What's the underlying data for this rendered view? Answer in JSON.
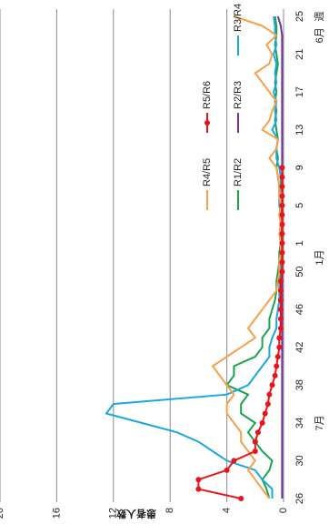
{
  "chart_data": {
    "type": "line",
    "y_label": "患者人数",
    "x_label": "週",
    "month_labels": [
      "7月",
      "1月",
      "6月"
    ],
    "categories": [
      "26",
      null,
      null,
      null,
      "30",
      null,
      null,
      null,
      "34",
      null,
      null,
      null,
      "38",
      null,
      null,
      null,
      "42",
      null,
      null,
      null,
      "46",
      null,
      null,
      null,
      "50",
      null,
      null,
      "1",
      null,
      null,
      null,
      "5",
      null,
      null,
      null,
      "9",
      null,
      null,
      null,
      "13",
      null,
      null,
      null,
      "17",
      null,
      null,
      null,
      "21",
      null,
      null,
      null,
      "25"
    ],
    "ylim": [
      0,
      20
    ],
    "yticks": [
      0,
      4,
      8,
      12,
      16,
      20
    ],
    "grid": true,
    "series": [
      {
        "name": "R1/R2",
        "color": "#1aa34a",
        "values": [
          1,
          1.2,
          1.5,
          1,
          0.8,
          1.5,
          2,
          2.5,
          2,
          3,
          3,
          2.5,
          4,
          3.5,
          3.5,
          2,
          1.5,
          1.5,
          1,
          1,
          0.8,
          0.6,
          0.5,
          0.5,
          0.4,
          0.3,
          0.3,
          0.2,
          0.2,
          0.2,
          0.2,
          0.2,
          0.3,
          0.3,
          0.4,
          0.5,
          0.4,
          0.5,
          0.4,
          0.5,
          0.6,
          0.5,
          0.6,
          0.5,
          0.6,
          0.5,
          0.4,
          0.5,
          0.6,
          0.5,
          0.5,
          0.6
        ]
      },
      {
        "name": "R2/R3",
        "color": "#7030a0",
        "values": [
          0.1,
          0.1,
          0.1,
          0.1,
          0.1,
          0.1,
          0.1,
          0.1,
          0.1,
          0.1,
          0.1,
          0.1,
          0.1,
          0.1,
          0.1,
          0.1,
          0.1,
          0.1,
          0.1,
          0.1,
          0.1,
          0.1,
          0.1,
          0.1,
          0.1,
          0.1,
          0.1,
          0.1,
          0.1,
          0.1,
          0.1,
          0.1,
          0.1,
          0.1,
          0.1,
          0.1,
          0.1,
          0.1,
          0.1,
          0.1,
          0.1,
          0.1,
          0.1,
          0.1,
          0.1,
          0.1,
          0.1,
          0.1,
          0.1,
          0.1,
          0.2,
          0.4
        ]
      },
      {
        "name": "R3/R4",
        "color": "#1aa7e0",
        "values": [
          0.8,
          0.8,
          1.5,
          2,
          4,
          5,
          6,
          7.5,
          10,
          12.5,
          12,
          4,
          2.5,
          2,
          1.5,
          1,
          1,
          0.8,
          0.5,
          0.5,
          0.4,
          0.3,
          0.3,
          0.3,
          0.2,
          0.2,
          0.2,
          0.2,
          0.2,
          0.2,
          0.2,
          0.3,
          0.3,
          0.2,
          0.2,
          0.3,
          0.5,
          0.5,
          0.4,
          0.8,
          0.5,
          0.6,
          0.5,
          0.7,
          0.5,
          0.6,
          0.5,
          0.7,
          0.5,
          0.6,
          0.6,
          0.7
        ]
      },
      {
        "name": "R4/R5",
        "color": "#f5a04a",
        "values": [
          1,
          1.5,
          2,
          2.5,
          2,
          2.5,
          3,
          3,
          3.5,
          4,
          4,
          3.5,
          4,
          4.5,
          5,
          4,
          3,
          2,
          2.5,
          2,
          1.5,
          1,
          0.5,
          0.4,
          0.3,
          0.3,
          0.2,
          0.2,
          0.3,
          0.2,
          0.3,
          0.2,
          0.3,
          0.3,
          0.4,
          0.5,
          1,
          0.5,
          0.4,
          1.5,
          1,
          0.8,
          0.5,
          1,
          1.5,
          2,
          1,
          0.8,
          1.2,
          0.5,
          1.5,
          3.5
        ]
      },
      {
        "name": "R5/R6",
        "color": "#e8141a",
        "markers": true,
        "values": [
          3,
          6,
          6,
          4,
          3.5,
          2,
          2,
          1.8,
          1.5,
          1.3,
          1.1,
          1,
          0.8,
          0.6,
          0.5,
          0.4,
          0.3,
          0.3,
          0.2,
          0.2,
          0.2,
          0.2,
          0.2,
          0.2,
          0.1,
          0.1,
          0.1,
          0.1,
          0.1,
          0.1,
          0.1,
          0.1,
          0.1,
          0.1,
          0.1,
          0.1,
          null,
          null,
          null,
          null,
          null,
          null,
          null,
          null,
          null,
          null,
          null,
          null,
          null,
          null,
          null,
          null
        ]
      }
    ]
  }
}
